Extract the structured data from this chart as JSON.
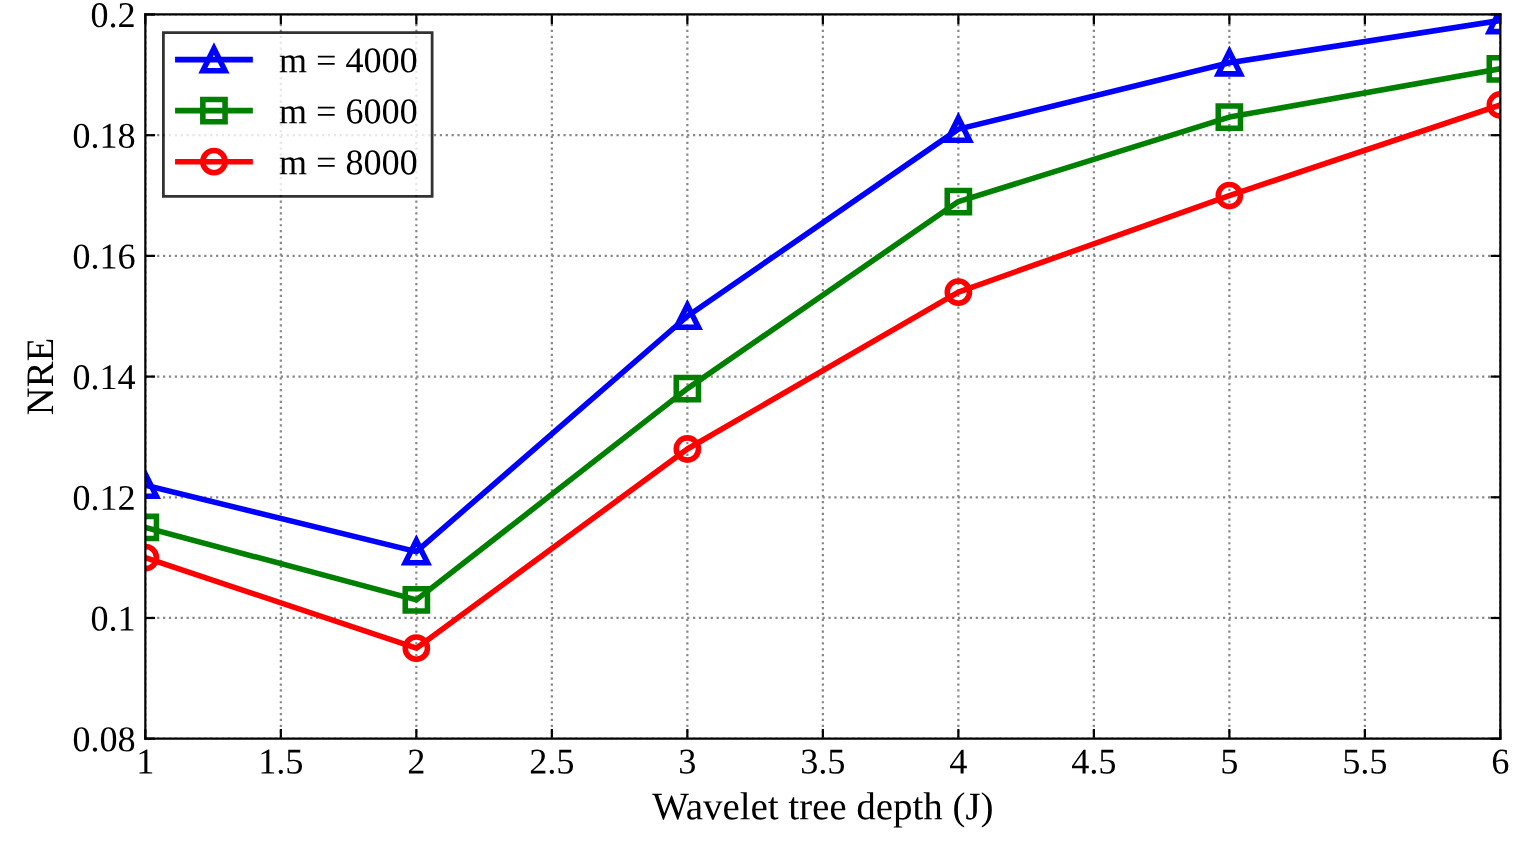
{
  "chart_data": {
    "type": "line",
    "xlabel": "Wavelet tree depth (J)",
    "ylabel": "NRE",
    "x": [
      1,
      2,
      3,
      4,
      5,
      6
    ],
    "series": [
      {
        "name": "m = 4000",
        "color": "#0000ff",
        "marker": "triangle",
        "values": [
          0.122,
          0.111,
          0.15,
          0.181,
          0.192,
          0.199
        ]
      },
      {
        "name": "m = 6000",
        "color": "#008000",
        "marker": "square",
        "values": [
          0.115,
          0.103,
          0.138,
          0.169,
          0.183,
          0.191
        ]
      },
      {
        "name": "m = 8000",
        "color": "#ff0000",
        "marker": "circle",
        "values": [
          0.11,
          0.095,
          0.128,
          0.154,
          0.17,
          0.185
        ]
      }
    ],
    "xlim": [
      1,
      6
    ],
    "xticks": [
      1,
      1.5,
      2,
      2.5,
      3,
      3.5,
      4,
      4.5,
      5,
      5.5,
      6
    ],
    "ylim": [
      0.08,
      0.2
    ],
    "yticks": [
      0.08,
      0.1,
      0.12,
      0.14,
      0.16,
      0.18,
      0.2
    ],
    "grid": true,
    "legend": "top left",
    "line_style": "solid"
  }
}
